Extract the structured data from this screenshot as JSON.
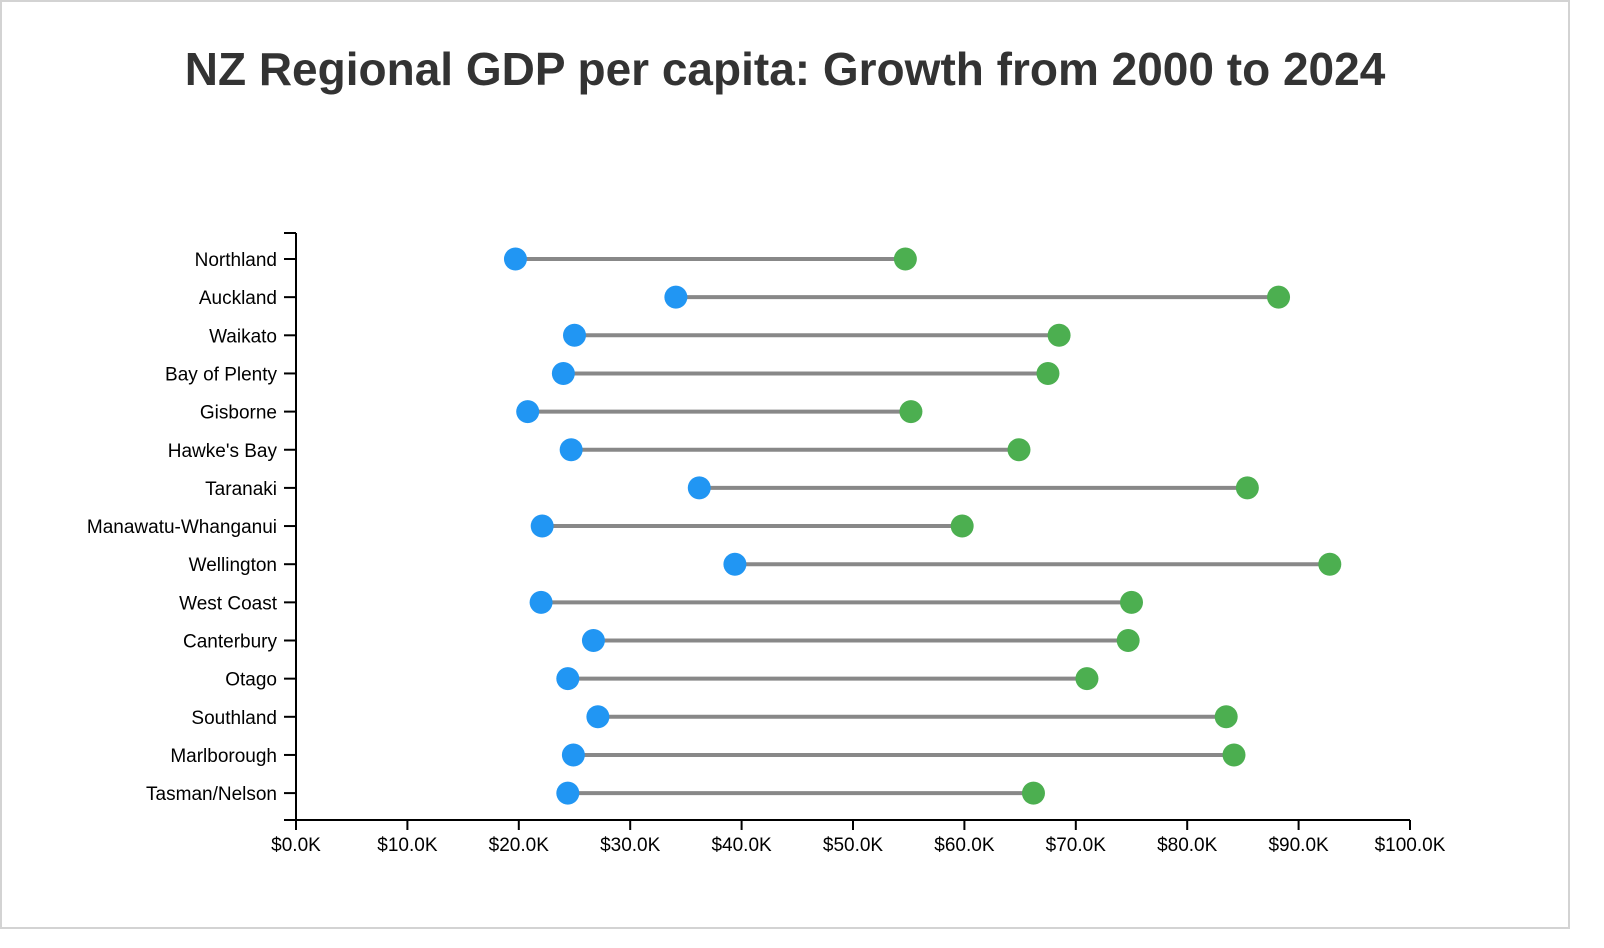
{
  "chart_data": {
    "type": "dumbbell",
    "title": "NZ Regional GDP per capita: Growth from 2000 to 2024",
    "xlabel": "",
    "ylabel": "",
    "xlim": [
      0,
      100000
    ],
    "x_ticks": [
      0,
      10000,
      20000,
      30000,
      40000,
      50000,
      60000,
      70000,
      80000,
      90000,
      100000
    ],
    "x_tick_labels": [
      "$0.0K",
      "$10.0K",
      "$20.0K",
      "$30.0K",
      "$40.0K",
      "$50.0K",
      "$60.0K",
      "$70.0K",
      "$80.0K",
      "$90.0K",
      "$100.0K"
    ],
    "categories": [
      "Northland",
      "Auckland",
      "Waikato",
      "Bay of Plenty",
      "Gisborne",
      "Hawke's Bay",
      "Taranaki",
      "Manawatu-Whanganui",
      "Wellington",
      "West Coast",
      "Canterbury",
      "Otago",
      "Southland",
      "Marlborough",
      "Tasman/Nelson"
    ],
    "series": [
      {
        "color": "#2196f3",
        "values": [
          19700,
          34100,
          25000,
          24000,
          20800,
          24700,
          36200,
          22100,
          39400,
          22000,
          26700,
          24400,
          27100,
          24900,
          24400
        ]
      },
      {
        "color": "#4caf50",
        "values": [
          54700,
          88200,
          68500,
          67500,
          55200,
          64900,
          85400,
          59800,
          92800,
          75000,
          74700,
          71000,
          83500,
          84200,
          66200
        ]
      }
    ],
    "connector_color": "#888888",
    "grid": false,
    "legend": "none"
  }
}
